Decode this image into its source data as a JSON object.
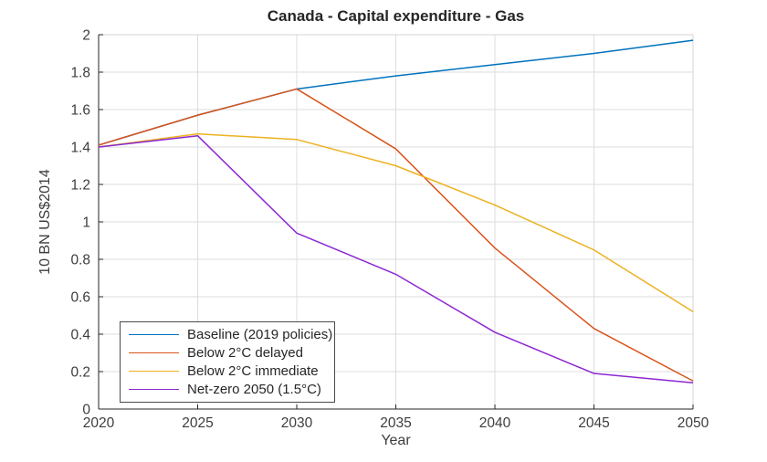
{
  "chart_data": {
    "type": "line",
    "title": "Canada - Capital expenditure - Gas",
    "xlabel": "Year",
    "ylabel": "10 BN US$2014",
    "x": [
      2020,
      2025,
      2030,
      2035,
      2040,
      2045,
      2050
    ],
    "xlim": [
      2020,
      2050
    ],
    "ylim": [
      0,
      2
    ],
    "xticks": {
      "values": [
        2020,
        2025,
        2030,
        2035,
        2040,
        2045,
        2050
      ],
      "labels": [
        "2020",
        "2025",
        "2030",
        "2035",
        "2040",
        "2045",
        "2050"
      ]
    },
    "yticks": {
      "values": [
        0,
        0.2,
        0.4,
        0.6,
        0.8,
        1,
        1.2,
        1.4,
        1.6,
        1.8,
        2
      ],
      "labels": [
        "0",
        "0.2",
        "0.4",
        "0.6",
        "0.8",
        "1",
        "1.2",
        "1.4",
        "1.6",
        "1.8",
        "2"
      ]
    },
    "grid": true,
    "legend_position": "inside-bottom-left",
    "series": [
      {
        "name": "Baseline (2019 policies)",
        "color": "#0072BD",
        "values": [
          1.41,
          1.57,
          1.71,
          1.78,
          1.84,
          1.9,
          1.97
        ]
      },
      {
        "name": "Below 2°C delayed",
        "color": "#D95319",
        "values": [
          1.41,
          1.57,
          1.71,
          1.39,
          0.86,
          0.43,
          0.15
        ]
      },
      {
        "name": "Below 2°C immediate",
        "color": "#EDB120",
        "values": [
          1.4,
          1.47,
          1.44,
          1.3,
          1.09,
          0.85,
          0.52
        ]
      },
      {
        "name": "Net-zero 2050 (1.5°C)",
        "color": "#8C28D2",
        "values": [
          1.4,
          1.46,
          0.94,
          0.72,
          0.41,
          0.19,
          0.14
        ]
      }
    ]
  },
  "colors": {
    "background": "#FFFFFF",
    "axis": "#262626",
    "grid": "#DDDDDD",
    "box": "#D4D4D4",
    "text": "#3D3D3D"
  }
}
